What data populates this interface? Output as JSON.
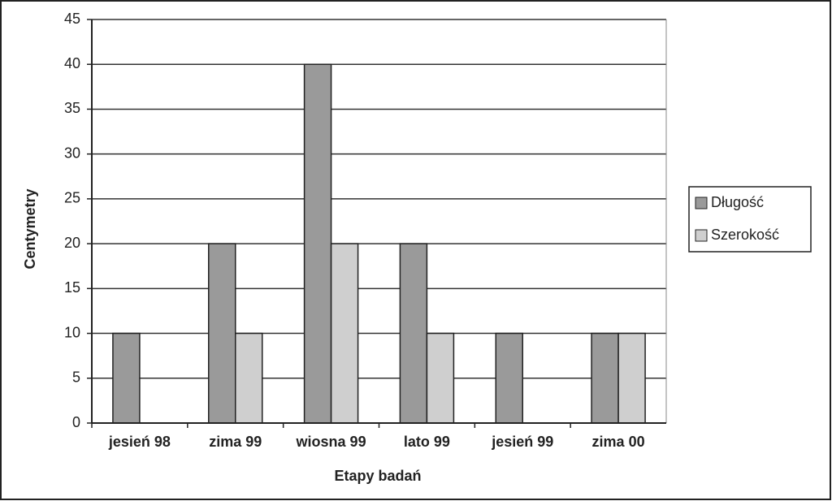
{
  "chart_data": {
    "type": "bar",
    "categories": [
      "jesień 98",
      "zima 99",
      "wiosna 99",
      "lato 99",
      "jesień 99",
      "zima 00"
    ],
    "series": [
      {
        "name": "Długość",
        "color": "#9a9a9a",
        "values": [
          10,
          20,
          40,
          20,
          10,
          10
        ]
      },
      {
        "name": "Szerokość",
        "color": "#cfcfcf",
        "values": [
          0,
          10,
          20,
          10,
          0,
          10
        ]
      }
    ],
    "ylim": [
      0,
      45
    ],
    "yticks": [
      0,
      5,
      10,
      15,
      20,
      25,
      30,
      35,
      40,
      45
    ],
    "grid": true,
    "y_label": "Centymetry",
    "x_label": "Etapy badań",
    "legend": "right"
  }
}
